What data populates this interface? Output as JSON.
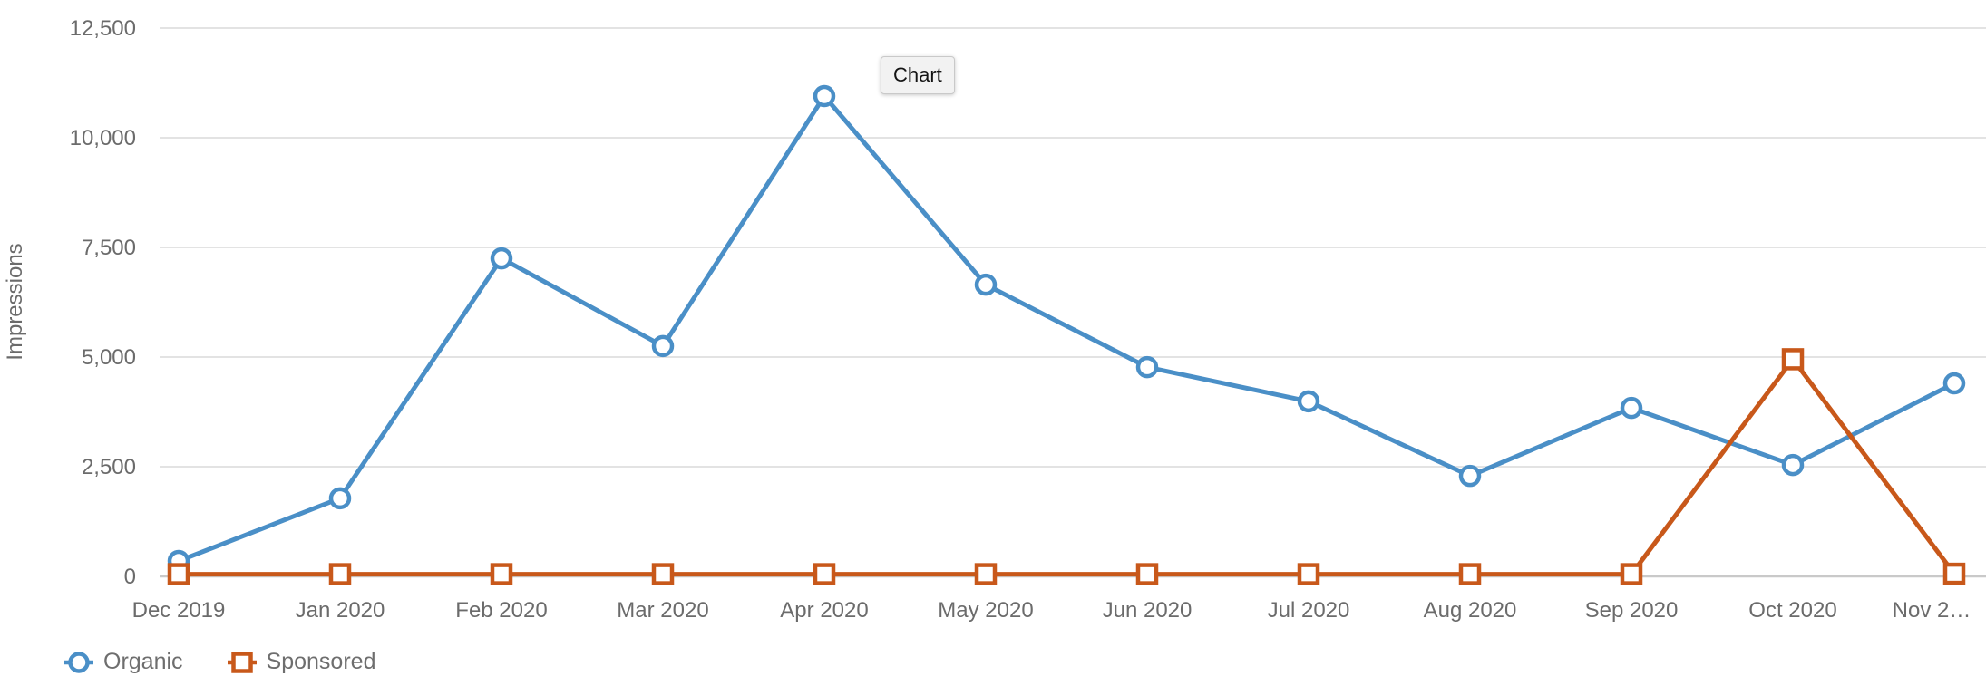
{
  "tooltip": {
    "label": "Chart"
  },
  "colors": {
    "organic": "#4a8fc7",
    "sponsored": "#c8581a",
    "gridline": "#e3e3e3",
    "axis_line": "#c9c9c9",
    "tick_text": "#6b6b6b"
  },
  "chart_data": {
    "type": "line",
    "title": "",
    "xlabel": "",
    "ylabel": "Impressions",
    "ylim": [
      0,
      12500
    ],
    "grid": true,
    "legend_position": "bottom-left",
    "yticks": [
      0,
      2500,
      5000,
      7500,
      10000,
      12500
    ],
    "ytick_labels": [
      "0",
      "2,500",
      "5,000",
      "7,500",
      "10,000",
      "12,500"
    ],
    "categories": [
      "Dec 2019",
      "Jan 2020",
      "Feb 2020",
      "Mar 2020",
      "Apr 2020",
      "May 2020",
      "Jun 2020",
      "Jul 2020",
      "Aug 2020",
      "Sep 2020",
      "Oct 2020",
      "Nov 2…"
    ],
    "series": [
      {
        "name": "Organic",
        "marker": "circle",
        "color": "#4a8fc7",
        "values": [
          350,
          1780,
          7250,
          5250,
          10950,
          6650,
          4770,
          3990,
          2290,
          3840,
          2540,
          4400
        ]
      },
      {
        "name": "Sponsored",
        "marker": "square",
        "color": "#c8581a",
        "values": [
          50,
          50,
          50,
          50,
          50,
          50,
          50,
          50,
          50,
          50,
          4950,
          60
        ]
      }
    ]
  }
}
